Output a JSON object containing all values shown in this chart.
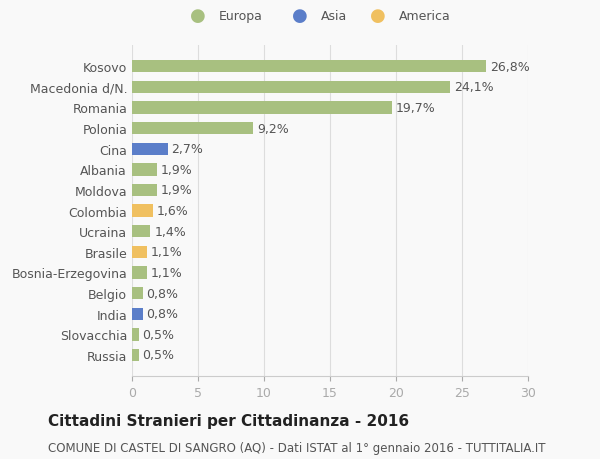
{
  "categories": [
    "Russia",
    "Slovacchia",
    "India",
    "Belgio",
    "Bosnia-Erzegovina",
    "Brasile",
    "Ucraina",
    "Colombia",
    "Moldova",
    "Albania",
    "Cina",
    "Polonia",
    "Romania",
    "Macedonia d/N.",
    "Kosovo"
  ],
  "values": [
    0.5,
    0.5,
    0.8,
    0.8,
    1.1,
    1.1,
    1.4,
    1.6,
    1.9,
    1.9,
    2.7,
    9.2,
    19.7,
    24.1,
    26.8
  ],
  "labels": [
    "0,5%",
    "0,5%",
    "0,8%",
    "0,8%",
    "1,1%",
    "1,1%",
    "1,4%",
    "1,6%",
    "1,9%",
    "1,9%",
    "2,7%",
    "9,2%",
    "19,7%",
    "24,1%",
    "26,8%"
  ],
  "colors": [
    "#a8c080",
    "#a8c080",
    "#5b7ec9",
    "#a8c080",
    "#a8c080",
    "#f0c060",
    "#a8c080",
    "#f0c060",
    "#a8c080",
    "#a8c080",
    "#5b7ec9",
    "#a8c080",
    "#a8c080",
    "#a8c080",
    "#a8c080"
  ],
  "legend_labels": [
    "Europa",
    "Asia",
    "America"
  ],
  "legend_colors": [
    "#a8c080",
    "#5b7ec9",
    "#f0c060"
  ],
  "title": "Cittadini Stranieri per Cittadinanza - 2016",
  "subtitle": "COMUNE DI CASTEL DI SANGRO (AQ) - Dati ISTAT al 1° gennaio 2016 - TUTTITALIA.IT",
  "xlim": [
    0,
    30
  ],
  "xticks": [
    0,
    5,
    10,
    15,
    20,
    25,
    30
  ],
  "background_color": "#f9f9f9",
  "bar_height": 0.6,
  "label_fontsize": 9,
  "title_fontsize": 11,
  "subtitle_fontsize": 8.5
}
